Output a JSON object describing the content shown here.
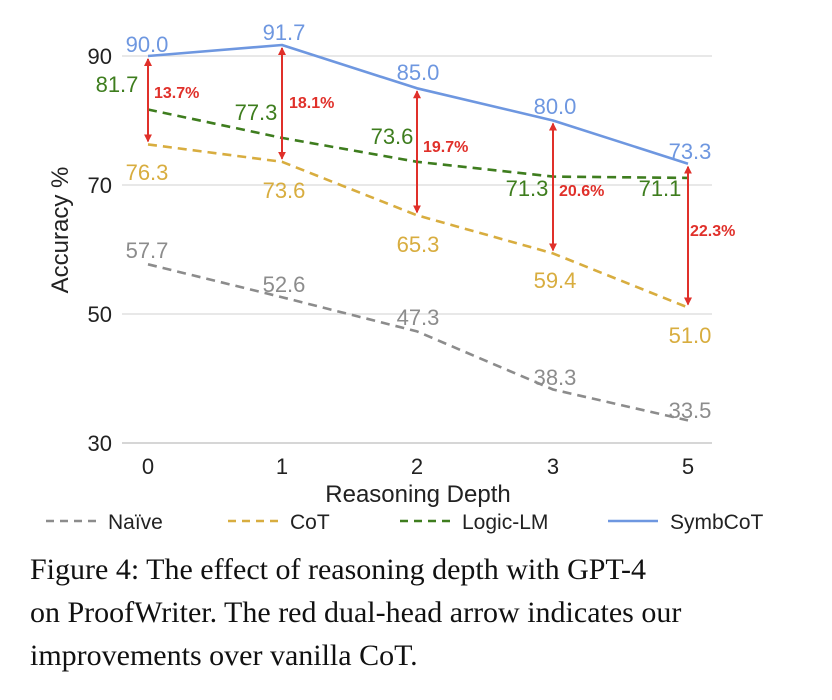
{
  "chart_data": {
    "type": "line",
    "xlabel": "Reasoning Depth",
    "ylabel": "Accuracy %",
    "categories": [
      "0",
      "1",
      "2",
      "3",
      "5"
    ],
    "yticks": [
      "30",
      "50",
      "70",
      "90"
    ],
    "ylim": [
      30,
      94
    ],
    "grid": true,
    "legend_position": "bottom",
    "series": [
      {
        "name": "Naïve",
        "color": "#8c8c8c",
        "dash": "dashed",
        "values": [
          57.7,
          52.6,
          47.3,
          38.3,
          33.5
        ],
        "labels": [
          "57.7",
          "52.6",
          "47.3",
          "38.3",
          "33.5"
        ]
      },
      {
        "name": "CoT",
        "color": "#d8ad3f",
        "dash": "dashed",
        "values": [
          76.3,
          73.6,
          65.3,
          59.4,
          51.0
        ],
        "labels": [
          "76.3",
          "73.6",
          "65.3",
          "59.4",
          "51.0"
        ]
      },
      {
        "name": "Logic-LM",
        "color": "#3e7d1e",
        "dash": "dashed",
        "values": [
          81.7,
          77.3,
          73.6,
          71.3,
          71.1
        ],
        "labels": [
          "81.7",
          "77.3",
          "73.6",
          "71.3",
          "71.1"
        ]
      },
      {
        "name": "SymbCoT",
        "color": "#6e97e0",
        "dash": "solid",
        "values": [
          90.0,
          91.7,
          85.0,
          80.0,
          73.3
        ],
        "labels": [
          "90.0",
          "91.7",
          "85.0",
          "80.0",
          "73.3"
        ]
      }
    ],
    "annotations": {
      "color": "#e0302a",
      "from_series": "CoT",
      "to_series": "SymbCoT",
      "labels": [
        "13.7%",
        "18.1%",
        "19.7%",
        "20.6%",
        "22.3%"
      ]
    }
  },
  "caption": {
    "lines": [
      "Figure 4:  The effect of reasoning depth with GPT-4",
      "on ProofWriter. The red dual-head arrow indicates our",
      "improvements over vanilla CoT."
    ]
  }
}
